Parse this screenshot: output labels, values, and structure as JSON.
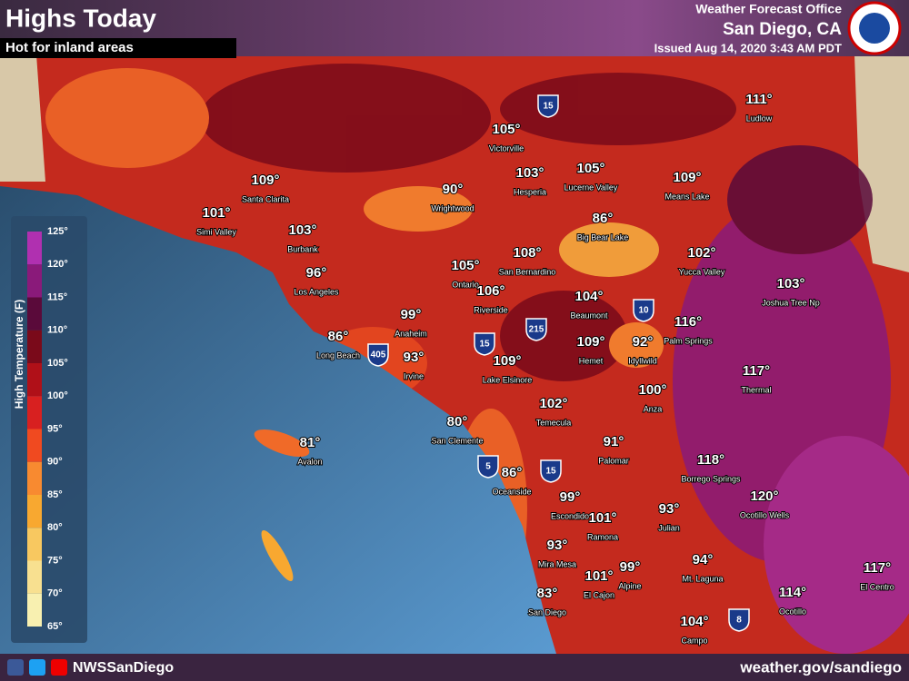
{
  "header": {
    "title": "Highs Today",
    "subtitle": "Hot for inland areas",
    "office": "Weather Forecast Office",
    "location": "San Diego, CA",
    "issued": "Issued Aug 14, 2020 3:43 AM PDT"
  },
  "legend": {
    "title": "High Temperature (F)",
    "ticks": [
      "125°",
      "120°",
      "115°",
      "110°",
      "105°",
      "100°",
      "95°",
      "90°",
      "85°",
      "80°",
      "75°",
      "70°",
      "65°"
    ]
  },
  "cities": [
    {
      "name": "Ludlow",
      "temp": "111°"
    },
    {
      "name": "Victorville",
      "temp": "105°"
    },
    {
      "name": "Hesperia",
      "temp": "103°"
    },
    {
      "name": "Lucerne Valley",
      "temp": "105°"
    },
    {
      "name": "Means Lake",
      "temp": "109°"
    },
    {
      "name": "Santa Clarita",
      "temp": "109°"
    },
    {
      "name": "Wrightwood",
      "temp": "90°"
    },
    {
      "name": "Simi Valley",
      "temp": "101°"
    },
    {
      "name": "Big Bear Lake",
      "temp": "86°"
    },
    {
      "name": "Burbank",
      "temp": "103°"
    },
    {
      "name": "San Bernardino",
      "temp": "108°"
    },
    {
      "name": "Yucca Valley",
      "temp": "102°"
    },
    {
      "name": "Ontario",
      "temp": "105°"
    },
    {
      "name": "Los Angeles",
      "temp": "96°"
    },
    {
      "name": "Joshua Tree Np",
      "temp": "103°"
    },
    {
      "name": "Riverside",
      "temp": "106°"
    },
    {
      "name": "Beaumont",
      "temp": "104°"
    },
    {
      "name": "Anaheim",
      "temp": "99°"
    },
    {
      "name": "Palm Springs",
      "temp": "116°"
    },
    {
      "name": "Long Beach",
      "temp": "86°"
    },
    {
      "name": "Hemet",
      "temp": "109°"
    },
    {
      "name": "Idyllwild",
      "temp": "92°"
    },
    {
      "name": "Irvine",
      "temp": "93°"
    },
    {
      "name": "Lake Elsinore",
      "temp": "109°"
    },
    {
      "name": "Thermal",
      "temp": "117°"
    },
    {
      "name": "Anza",
      "temp": "100°"
    },
    {
      "name": "Temecula",
      "temp": "102°"
    },
    {
      "name": "San Clemente",
      "temp": "80°"
    },
    {
      "name": "Avalon",
      "temp": "81°"
    },
    {
      "name": "Palomar",
      "temp": "91°"
    },
    {
      "name": "Borrego Springs",
      "temp": "118°"
    },
    {
      "name": "Oceanside",
      "temp": "86°"
    },
    {
      "name": "Escondido",
      "temp": "99°"
    },
    {
      "name": "Ocotillo Wells",
      "temp": "120°"
    },
    {
      "name": "Ramona",
      "temp": "101°"
    },
    {
      "name": "Julian",
      "temp": "93°"
    },
    {
      "name": "Mira Mesa",
      "temp": "93°"
    },
    {
      "name": "Mt. Laguna",
      "temp": "94°"
    },
    {
      "name": "Alpine",
      "temp": "99°"
    },
    {
      "name": "El Cajon",
      "temp": "101°"
    },
    {
      "name": "El Centro",
      "temp": "117°"
    },
    {
      "name": "San Diego",
      "temp": "83°"
    },
    {
      "name": "Ocotillo",
      "temp": "114°"
    },
    {
      "name": "Campo",
      "temp": "104°"
    }
  ],
  "highways": [
    "15",
    "10",
    "215",
    "15",
    "405",
    "5",
    "15",
    "8"
  ],
  "footer": {
    "social": "NWSSanDiego",
    "url": "weather.gov/sandiego"
  }
}
